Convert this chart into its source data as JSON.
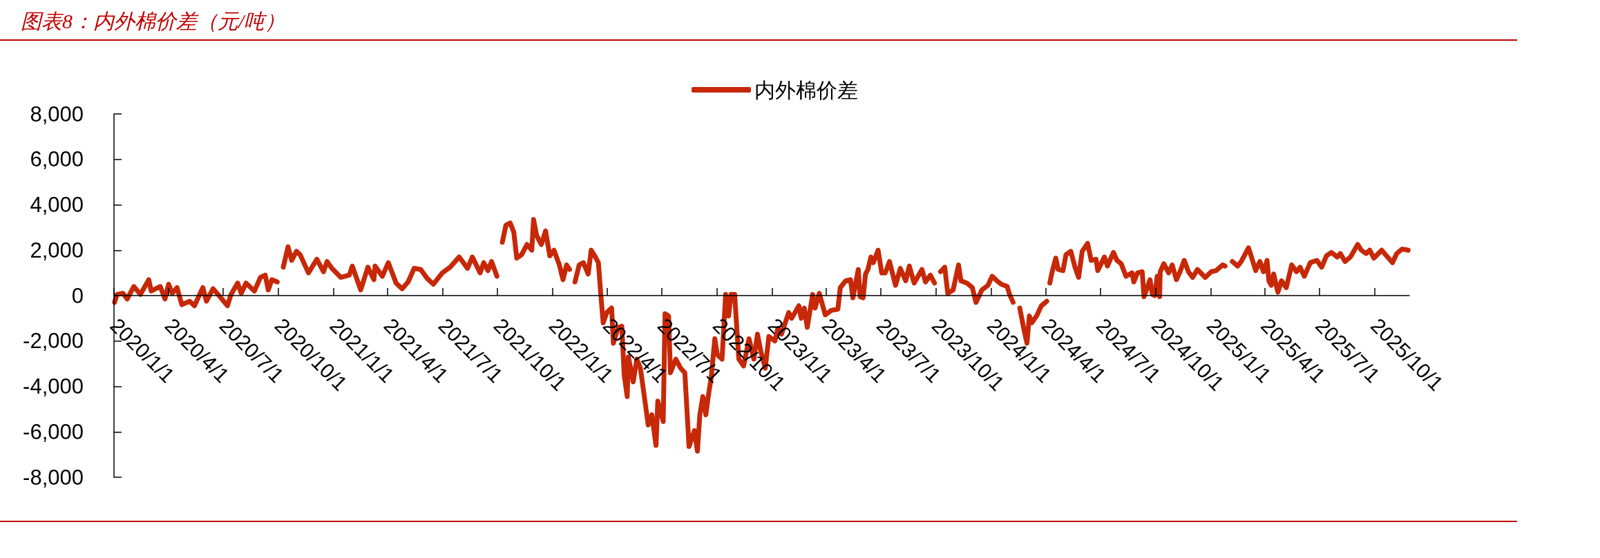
{
  "chart_data": {
    "type": "line",
    "title": "图表8：内外棉价差（元/吨）",
    "x": [
      "2020-01-02",
      "2020-01-06",
      "2020-01-16",
      "2020-01-23",
      "2020-02-03",
      "2020-02-14",
      "2020-02-28",
      "2020-03-03",
      "2020-03-18",
      "2020-03-26",
      "2020-04-01",
      "2020-04-07",
      "2020-04-15",
      "2020-04-23",
      "2020-05-06",
      "2020-05-14",
      "2020-05-28",
      "2020-06-03",
      "2020-06-14",
      "2020-06-24",
      "2020-07-08",
      "2020-07-14",
      "2020-07-25",
      "2020-07-31",
      "2020-08-08",
      "2020-08-22",
      "2020-09-01",
      "2020-09-09",
      "2020-09-14",
      "2020-09-20",
      "2020-09-29",
      "2020-10-04",
      "2020-10-09",
      "2020-10-17",
      "2020-10-23",
      "2020-10-31",
      "2020-11-06",
      "2020-11-20",
      "2020-12-04",
      "2020-12-15",
      "2020-12-21",
      "2020-12-29",
      "2021-01-13",
      "2021-01-27",
      "2021-02-01",
      "2021-02-15",
      "2021-02-27",
      "2021-03-09",
      "2021-03-11",
      "2021-03-23",
      "2021-04-02",
      "2021-04-15",
      "2021-04-25",
      "2021-05-05",
      "2021-05-15",
      "2021-05-26",
      "2021-06-06",
      "2021-06-16",
      "2021-07-01",
      "2021-07-14",
      "2021-07-29",
      "2021-08-12",
      "2021-08-20",
      "2021-09-02",
      "2021-09-08",
      "2021-09-15",
      "2021-09-21",
      "2021-09-30",
      "2021-10-04",
      "2021-10-09",
      "2021-10-15",
      "2021-10-22",
      "2021-10-28",
      "2021-11-02",
      "2021-11-10",
      "2021-11-19",
      "2021-11-27",
      "2021-11-30",
      "2021-12-05",
      "2021-12-13",
      "2021-12-20",
      "2021-12-27",
      "2022-01-03",
      "2022-01-12",
      "2022-01-18",
      "2022-01-24",
      "2022-01-29",
      "2022-02-02",
      "2022-02-07",
      "2022-02-14",
      "2022-02-21",
      "2022-03-01",
      "2022-03-06",
      "2022-03-13",
      "2022-03-18",
      "2022-03-22",
      "2022-03-26",
      "2022-04-01",
      "2022-04-09",
      "2022-04-12",
      "2022-04-20",
      "2022-04-26",
      "2022-04-30",
      "2022-05-05",
      "2022-05-07",
      "2022-05-15",
      "2022-05-21",
      "2022-05-27",
      "2022-06-01",
      "2022-06-09",
      "2022-06-15",
      "2022-06-22",
      "2022-06-25",
      "2022-07-04",
      "2022-07-07",
      "2022-07-13",
      "2022-07-16",
      "2022-07-25",
      "2022-08-02",
      "2022-08-09",
      "2022-08-16",
      "2022-08-21",
      "2022-08-25",
      "2022-08-30",
      "2022-09-03",
      "2022-09-08",
      "2022-09-13",
      "2022-09-17",
      "2022-09-22",
      "2022-09-28",
      "2022-10-02",
      "2022-10-10",
      "2022-10-16",
      "2022-10-21",
      "2022-10-25",
      "2022-10-31",
      "2022-11-04",
      "2022-11-07",
      "2022-11-15",
      "2022-11-24",
      "2022-12-02",
      "2022-12-08",
      "2022-12-14",
      "2022-12-21",
      "2022-12-27",
      "2023-01-06",
      "2023-01-11",
      "2023-01-17",
      "2023-01-29",
      "2023-02-03",
      "2023-02-15",
      "2023-02-19",
      "2023-02-24",
      "2023-03-01",
      "2023-03-10",
      "2023-03-14",
      "2023-03-21",
      "2023-03-31",
      "2023-04-10",
      "2023-04-21",
      "2023-04-25",
      "2023-05-04",
      "2023-05-12",
      "2023-05-16",
      "2023-05-25",
      "2023-05-28",
      "2023-06-02",
      "2023-06-06",
      "2023-06-10",
      "2023-06-15",
      "2023-06-19",
      "2023-06-27",
      "2023-07-03",
      "2023-07-09",
      "2023-07-16",
      "2023-07-26",
      "2023-08-03",
      "2023-08-12",
      "2023-08-18",
      "2023-08-26",
      "2023-09-08",
      "2023-09-14",
      "2023-09-22",
      "2023-09-29",
      "2023-10-04",
      "2023-10-09",
      "2023-10-16",
      "2023-10-21",
      "2023-10-30",
      "2023-11-08",
      "2023-11-12",
      "2023-11-22",
      "2023-12-01",
      "2023-12-07",
      "2023-12-17",
      "2023-12-27",
      "2024-01-03",
      "2024-01-11",
      "2024-01-18",
      "2024-01-28",
      "2024-02-01",
      "2024-02-07",
      "2024-02-12",
      "2024-02-18",
      "2024-02-25",
      "2024-03-01",
      "2024-03-05",
      "2024-03-09",
      "2024-03-17",
      "2024-03-25",
      "2024-04-03",
      "2024-04-05",
      "2024-04-08",
      "2024-04-12",
      "2024-04-18",
      "2024-04-22",
      "2024-04-30",
      "2024-05-05",
      "2024-05-13",
      "2024-05-20",
      "2024-05-26",
      "2024-06-01",
      "2024-06-10",
      "2024-06-16",
      "2024-06-24",
      "2024-06-27",
      "2024-07-08",
      "2024-07-13",
      "2024-07-23",
      "2024-07-29",
      "2024-08-05",
      "2024-08-13",
      "2024-08-23",
      "2024-08-26",
      "2024-09-01",
      "2024-09-09",
      "2024-09-12",
      "2024-09-16",
      "2024-09-22",
      "2024-09-26",
      "2024-09-30",
      "2024-10-04",
      "2024-10-08",
      "2024-10-09",
      "2024-10-15",
      "2024-10-23",
      "2024-10-29",
      "2024-11-05",
      "2024-11-11",
      "2024-11-18",
      "2024-11-25",
      "2024-12-02",
      "2024-12-10",
      "2024-12-23",
      "2025-01-02",
      "2025-01-10",
      "2025-01-21",
      "2025-01-25",
      "2025-01-30",
      "2025-02-06",
      "2025-02-15",
      "2025-02-21",
      "2025-03-05",
      "2025-03-10",
      "2025-03-17",
      "2025-03-24",
      "2025-03-30",
      "2025-04-05",
      "2025-04-08",
      "2025-04-12",
      "2025-04-16",
      "2025-04-23",
      "2025-04-29",
      "2025-05-07",
      "2025-05-16",
      "2025-05-24",
      "2025-05-30",
      "2025-06-06",
      "2025-06-16",
      "2025-06-27",
      "2025-07-05",
      "2025-07-13",
      "2025-07-21",
      "2025-07-31",
      "2025-08-05",
      "2025-08-13",
      "2025-08-22",
      "2025-09-03",
      "2025-09-09",
      "2025-09-17",
      "2025-09-23",
      "2025-09-30",
      "2025-10-13",
      "2025-10-21",
      "2025-10-31",
      "2025-11-07",
      "2025-11-16",
      "2025-11-26"
    ],
    "series": [
      {
        "name": "内外棉价差",
        "color": "#c62808",
        "values": [
          -300,
          50,
          100,
          -150,
          400,
          50,
          700,
          200,
          400,
          -150,
          500,
          100,
          350,
          -400,
          -250,
          -450,
          350,
          -250,
          300,
          0,
          -450,
          50,
          550,
          100,
          550,
          200,
          800,
          900,
          250,
          700,
          600,
          null,
          1250,
          2150,
          1550,
          1950,
          1800,
          1000,
          1600,
          1050,
          1500,
          1200,
          800,
          900,
          1300,
          250,
          1250,
          700,
          1300,
          850,
          1450,
          550,
          300,
          600,
          1200,
          1150,
          750,
          500,
          1000,
          1250,
          1700,
          1200,
          1700,
          1000,
          1450,
          1100,
          1500,
          850,
          null,
          2350,
          3100,
          3200,
          2800,
          1650,
          1800,
          2250,
          2000,
          3350,
          2650,
          2250,
          2850,
          1750,
          2000,
          1350,
          700,
          1350,
          1150,
          null,
          600,
          1350,
          1450,
          950,
          2000,
          1700,
          1450,
          50,
          -1200,
          -750,
          -550,
          -2100,
          -1400,
          -1350,
          -3500,
          -4450,
          -2700,
          -3800,
          -2800,
          -3200,
          -4150,
          -5700,
          -5250,
          -6600,
          -4650,
          -5550,
          -800,
          -900,
          -3400,
          -2800,
          -3200,
          -3400,
          -6650,
          -6250,
          -5950,
          -6850,
          -5250,
          -4450,
          -5250,
          -4450,
          -3600,
          -1900,
          -2600,
          -2800,
          50,
          -900,
          50,
          50,
          -1600,
          -2800,
          -3100,
          -1900,
          -2800,
          -1700,
          -2500,
          -3200,
          -1800,
          -2000,
          -1450,
          -1700,
          -750,
          -1000,
          -450,
          -1000,
          -550,
          -1400,
          50,
          -550,
          100,
          -850,
          -650,
          -600,
          350,
          650,
          700,
          -100,
          1150,
          -50,
          -100,
          950,
          1150,
          1700,
          1450,
          2000,
          1000,
          1000,
          1500,
          450,
          1200,
          650,
          1300,
          550,
          1150,
          600,
          900,
          550,
          null,
          1050,
          1250,
          100,
          250,
          1350,
          650,
          550,
          350,
          -300,
          250,
          450,
          850,
          650,
          500,
          400,
          50,
          -300,
          null,
          -550,
          -1500,
          -2100,
          -900,
          -1200,
          -900,
          -450,
          -250,
          null,
          550,
          1050,
          1650,
          1150,
          1100,
          1800,
          1950,
          1250,
          800,
          1950,
          2300,
          1550,
          1600,
          1100,
          1700,
          1300,
          1900,
          1550,
          1400,
          850,
          1000,
          600,
          1000,
          1050,
          -50,
          250,
          700,
          50,
          0,
          850,
          -50,
          1050,
          1400,
          1000,
          1350,
          700,
          1050,
          1550,
          1050,
          800,
          1150,
          800,
          1050,
          1100,
          1350,
          1300,
          null,
          1500,
          1300,
          1500,
          2100,
          1700,
          1100,
          1500,
          1050,
          1550,
          650,
          450,
          950,
          150,
          650,
          350,
          1350,
          1050,
          1250,
          850,
          1450,
          1550,
          1250,
          1750,
          1900,
          1700,
          1850,
          1500,
          1700,
          2250,
          2000,
          1850,
          2000,
          1650,
          2000,
          1750,
          1450,
          1850,
          2050,
          2000
        ]
      }
    ],
    "xlim": [
      "2020-01-01",
      "2025-11-28"
    ],
    "xticks": [
      {
        "value": "2020-01-01",
        "label": "2020/1/1"
      },
      {
        "value": "2020-04-01",
        "label": "2020/4/1"
      },
      {
        "value": "2020-07-01",
        "label": "2020/7/1"
      },
      {
        "value": "2020-10-01",
        "label": "2020/10/1"
      },
      {
        "value": "2021-01-01",
        "label": "2021/1/1"
      },
      {
        "value": "2021-04-01",
        "label": "2021/4/1"
      },
      {
        "value": "2021-07-01",
        "label": "2021/7/1"
      },
      {
        "value": "2021-10-01",
        "label": "2021/10/1"
      },
      {
        "value": "2022-01-01",
        "label": "2022/1/1"
      },
      {
        "value": "2022-04-01",
        "label": "2022/4/1"
      },
      {
        "value": "2022-07-01",
        "label": "2022/7/1"
      },
      {
        "value": "2022-10-01",
        "label": "2022/10/1"
      },
      {
        "value": "2023-01-01",
        "label": "2023/1/1"
      },
      {
        "value": "2023-04-01",
        "label": "2023/4/1"
      },
      {
        "value": "2023-07-01",
        "label": "2023/7/1"
      },
      {
        "value": "2023-10-01",
        "label": "2023/10/1"
      },
      {
        "value": "2024-01-01",
        "label": "2024/1/1"
      },
      {
        "value": "2024-04-01",
        "label": "2024/4/1"
      },
      {
        "value": "2024-07-01",
        "label": "2024/7/1"
      },
      {
        "value": "2024-10-01",
        "label": "2024/10/1"
      },
      {
        "value": "2025-01-01",
        "label": "2025/1/1"
      },
      {
        "value": "2025-04-01",
        "label": "2025/4/1"
      },
      {
        "value": "2025-07-01",
        "label": "2025/7/1"
      },
      {
        "value": "2025-10-01",
        "label": "2025/10/1"
      }
    ],
    "ylim": [
      -8000,
      8000
    ],
    "yticks": [
      {
        "value": -8000,
        "label": "-8,000"
      },
      {
        "value": -6000,
        "label": "-6,000"
      },
      {
        "value": -4000,
        "label": "-4,000"
      },
      {
        "value": -2000,
        "label": "-2,000"
      },
      0,
      {
        "value": 2000,
        "label": "2,000"
      },
      {
        "value": 4000,
        "label": "4,000"
      },
      {
        "value": 6000,
        "label": "6,000"
      },
      {
        "value": 8000,
        "label": "8,000"
      }
    ],
    "legend": "top",
    "marker": "none",
    "line_style": "solid"
  }
}
